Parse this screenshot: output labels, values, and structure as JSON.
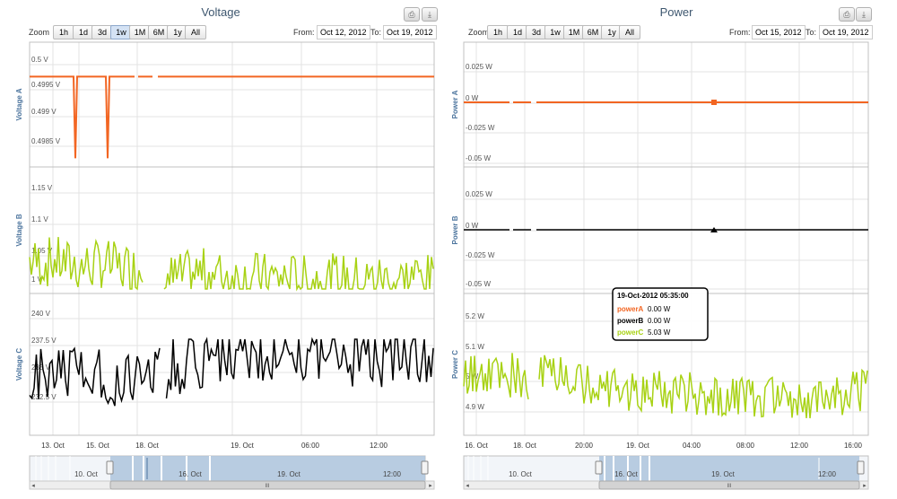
{
  "colors": {
    "orange": "#f26522",
    "green": "#a8d214",
    "black": "#000000",
    "navBlue": "#aec4dd",
    "gridLine": "#e3e3e3",
    "axisTitle": "#4d759e"
  },
  "range_selector": {
    "zoom_label": "Zoom",
    "buttons": [
      "1h",
      "1d",
      "3d",
      "1w",
      "1M",
      "6M",
      "1y",
      "All"
    ],
    "selected": "1w",
    "from_label": "From:",
    "to_label": "To:"
  },
  "left_panel": {
    "title": "Voltage",
    "from_value": "Oct 12, 2012",
    "to_value": "Oct 19, 2012",
    "x_ticks": [
      "13. Oct",
      "15. Oct",
      "18. Oct",
      "19. Oct",
      "06:00",
      "12:00"
    ],
    "navigator_ticks": [
      "10. Oct",
      "16. Oct",
      "19. Oct",
      "12:00"
    ],
    "scrollbar_grip": "III"
  },
  "right_panel": {
    "title": "Power",
    "from_value": "Oct 15, 2012",
    "to_value": "Oct 19, 2012",
    "x_ticks": [
      "16. Oct",
      "18. Oct",
      "20:00",
      "19. Oct",
      "04:00",
      "08:00",
      "12:00",
      "16:00"
    ],
    "navigator_ticks": [
      "10. Oct",
      "16. Oct",
      "19. Oct",
      "12:00"
    ],
    "scrollbar_grip": "III",
    "tooltip": {
      "header": "19-Oct-2012 05:35:00",
      "rows": [
        {
          "name": "powerA",
          "value": "0.00 W"
        },
        {
          "name": "powerB",
          "value": "0.00 W"
        },
        {
          "name": "powerC",
          "value": "5.03 W"
        }
      ]
    }
  },
  "chart_data": [
    {
      "type": "line",
      "title": "Voltage",
      "x_range": [
        "2012-10-12",
        "2012-10-19"
      ],
      "panes": [
        {
          "ylabel": "Voltage A",
          "y_ticks": [
            "0.5 V",
            "0.4995 V",
            "0.499 V",
            "0.4985 V"
          ],
          "ylim": [
            0.4979,
            0.5008
          ],
          "series": [
            {
              "name": "voltageA",
              "color": "orange",
              "baseline": 0.5,
              "dips": [
                {
                  "x": "13. Oct",
                  "y": 0.4981
                },
                {
                  "x": "15. Oct",
                  "y": 0.4981
                }
              ]
            }
          ]
        },
        {
          "ylabel": "Voltage B",
          "y_ticks": [
            "1.15 V",
            "1.1 V",
            "1.05 V",
            "1 V"
          ],
          "ylim": [
            0.99,
            1.18
          ],
          "series": [
            {
              "name": "voltageB",
              "color": "green",
              "range": [
                1.0,
                1.1
              ]
            }
          ]
        },
        {
          "ylabel": "Voltage C",
          "y_ticks": [
            "240 V",
            "237.5 V",
            "235 V",
            "232.5 V"
          ],
          "ylim": [
            230.8,
            241.3
          ],
          "series": [
            {
              "name": "voltageC",
              "color": "black",
              "range": [
                231.5,
                238.5
              ]
            }
          ]
        }
      ]
    },
    {
      "type": "line",
      "title": "Power",
      "x_range": [
        "2012-10-15",
        "2012-10-19"
      ],
      "panes": [
        {
          "ylabel": "Power A",
          "y_ticks": [
            "0.025 W",
            "0 W",
            "-0.025 W",
            "-0.05 W"
          ],
          "ylim": [
            -0.057,
            0.039
          ],
          "series": [
            {
              "name": "powerA",
              "color": "orange",
              "baseline": 0
            }
          ]
        },
        {
          "ylabel": "Power B",
          "y_ticks": [
            "0.025 W",
            "0 W",
            "-0.025 W",
            "-0.05 W"
          ],
          "ylim": [
            -0.057,
            0.039
          ],
          "series": [
            {
              "name": "powerB",
              "color": "black",
              "baseline": 0
            }
          ]
        },
        {
          "ylabel": "Power C",
          "y_ticks": [
            "5.2 W",
            "5.1 W",
            "5 W",
            "4.9 W"
          ],
          "ylim": [
            4.83,
            5.35
          ],
          "series": [
            {
              "name": "powerC",
              "color": "green",
              "range": [
                4.88,
                5.12
              ]
            }
          ]
        }
      ]
    }
  ]
}
